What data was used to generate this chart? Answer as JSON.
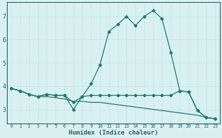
{
  "xlabel": "Humidex (Indice chaleur)",
  "x_values": [
    0,
    1,
    2,
    3,
    4,
    5,
    6,
    7,
    8,
    9,
    10,
    11,
    12,
    13,
    14,
    15,
    16,
    17,
    18,
    19,
    20,
    21,
    22,
    23
  ],
  "line1_y": [
    3.9,
    3.8,
    3.65,
    3.55,
    3.65,
    3.6,
    3.6,
    3.0,
    3.55,
    4.1,
    4.9,
    6.35,
    6.65,
    7.0,
    6.6,
    7.0,
    7.25,
    6.9,
    5.45,
    3.8,
    3.75,
    2.95,
    2.65,
    2.6
  ],
  "line2_y": [
    3.9,
    3.8,
    3.65,
    3.55,
    3.65,
    3.6,
    3.6,
    3.3,
    3.55,
    3.6,
    3.6,
    3.6,
    3.6,
    3.6,
    3.6,
    3.6,
    3.6,
    3.6,
    3.6,
    3.8,
    3.75,
    2.95,
    2.65,
    2.6
  ],
  "line3_y": [
    3.9,
    3.8,
    3.65,
    3.55,
    3.55,
    3.5,
    3.45,
    3.35,
    3.35,
    3.3,
    3.3,
    3.25,
    3.2,
    3.15,
    3.1,
    3.05,
    3.0,
    2.95,
    2.9,
    2.85,
    2.8,
    2.75,
    2.65,
    2.6
  ],
  "line_color": "#1a7a6e",
  "bg_color": "#d8f0f0",
  "grid_color": "#c8e4e4",
  "axis_color": "#2a6060",
  "ylim": [
    2.4,
    7.6
  ],
  "yticks": [
    3,
    4,
    5,
    6,
    7
  ],
  "xlim": [
    -0.5,
    23.5
  ]
}
